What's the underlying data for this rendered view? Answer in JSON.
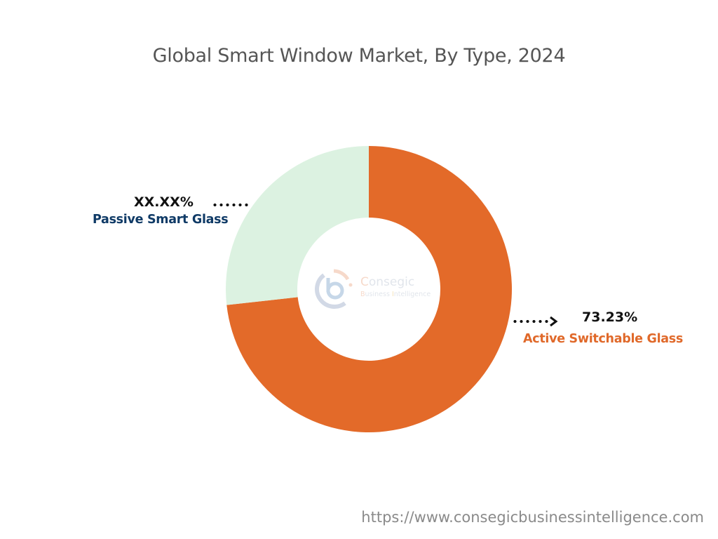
{
  "title": "Global Smart Window Market, By Type, 2024",
  "footer_url": "https://www.consegicbusinessintelligence.com",
  "watermark": {
    "brand": "Consegic",
    "tagline": "Business Intelligence",
    "brand_first": "C",
    "brand_rest": "onsegic",
    "tag_b": "B",
    "tag_usiness": "usiness ",
    "tag_i": "I",
    "tag_ntelligence": "ntelligence"
  },
  "labels": {
    "passive": {
      "percent": "XX.XX%",
      "name": "Passive Smart Glass",
      "color": "#0f3a66"
    },
    "active": {
      "percent": "73.23%",
      "name": "Active Switchable Glass",
      "color": "#e0692a"
    }
  },
  "colors": {
    "active": "#e36a29",
    "passive": "#dcf2e1"
  },
  "chart_data": {
    "type": "pie",
    "subtype": "donut",
    "title": "Global Smart Window Market, By Type, 2024",
    "categories": [
      "Active Switchable Glass",
      "Passive Smart Glass"
    ],
    "values": [
      73.23,
      26.77
    ],
    "value_labels": [
      "73.23%",
      "XX.XX%"
    ],
    "colors": [
      "#e36a29",
      "#dcf2e1"
    ],
    "start_angle": "12 o'clock, clockwise",
    "legend": "none (direct labels with dotted leader lines)"
  }
}
